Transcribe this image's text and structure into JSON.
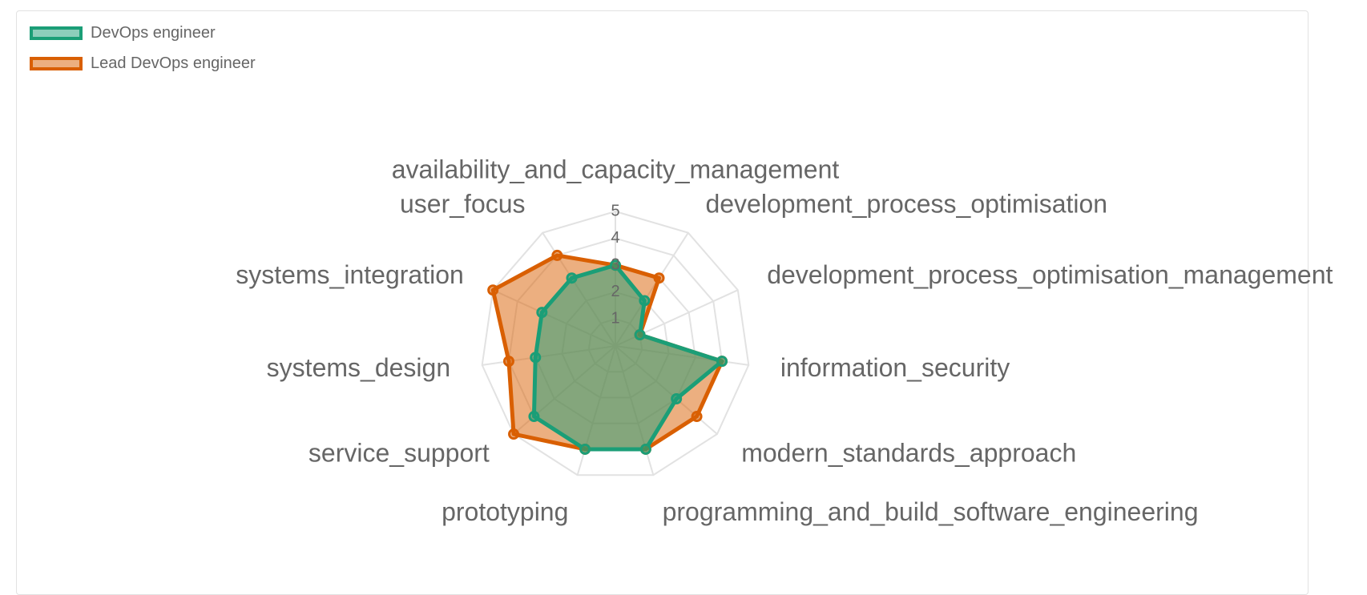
{
  "chart_data": {
    "type": "radar",
    "axes": [
      "availability_and_capacity_management",
      "development_process_optimisation",
      "development_process_optimisation_management",
      "information_security",
      "modern_standards_approach",
      "programming_and_build_software_engineering",
      "prototyping",
      "service_support",
      "systems_design",
      "systems_integration",
      "user_focus"
    ],
    "rlim": [
      0,
      5
    ],
    "ticks": [
      "1",
      "2",
      "3",
      "4",
      "5"
    ],
    "grid": true,
    "legend_position": "top-left",
    "series": [
      {
        "name": "DevOps engineer",
        "values": [
          3,
          2,
          1,
          4,
          3,
          4,
          4,
          4,
          3,
          3,
          3
        ],
        "stroke": "#1b9e77",
        "fill": "rgba(27,158,119,0.5)"
      },
      {
        "name": "Lead DevOps engineer",
        "values": [
          3,
          3,
          1,
          4,
          4,
          4,
          4,
          5,
          4,
          5,
          4
        ],
        "stroke": "#d95f02",
        "fill": "rgba(217,95,2,0.5)"
      }
    ]
  }
}
